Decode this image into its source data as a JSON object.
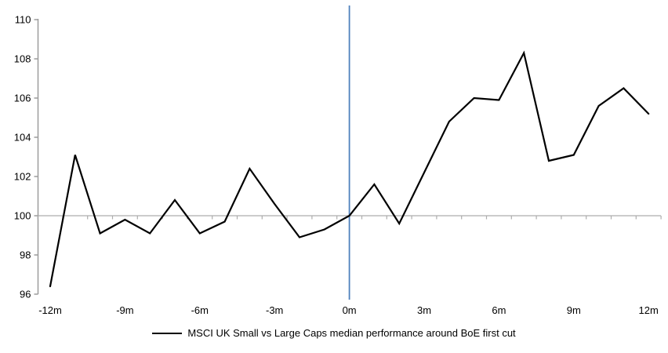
{
  "chart_data": {
    "type": "line",
    "title": "",
    "categories": [
      "-12m",
      "-11m",
      "-10m",
      "-9m",
      "-8m",
      "-7m",
      "-6m",
      "-5m",
      "-4m",
      "-3m",
      "-2m",
      "-1m",
      "0m",
      "1m",
      "2m",
      "3m",
      "4m",
      "5m",
      "6m",
      "7m",
      "8m",
      "9m",
      "10m",
      "11m",
      "12m"
    ],
    "x_numeric": [
      -12,
      -11,
      -10,
      -9,
      -8,
      -7,
      -6,
      -5,
      -4,
      -3,
      -2,
      -1,
      0,
      1,
      2,
      3,
      4,
      5,
      6,
      7,
      8,
      9,
      10,
      11,
      12
    ],
    "series": [
      {
        "name": "MSCI UK Small vs Large Caps median performance around BoE first cut",
        "color": "#000000",
        "values": [
          96.4,
          103.1,
          99.1,
          99.8,
          99.1,
          100.8,
          99.1,
          99.7,
          102.4,
          100.6,
          98.9,
          99.3,
          100.0,
          101.6,
          99.6,
          102.2,
          104.8,
          106.0,
          105.9,
          108.3,
          102.8,
          103.1,
          105.6,
          106.5,
          105.2
        ]
      }
    ],
    "ylim": [
      96,
      110
    ],
    "yticks": [
      110,
      108,
      106,
      104,
      102,
      100,
      98,
      96
    ],
    "xtick_labels": [
      "-12m",
      "-9m",
      "-6m",
      "-3m",
      "0m",
      "3m",
      "6m",
      "9m",
      "12m"
    ],
    "x_axis_cross_value": 100,
    "grid": "off",
    "legend_position": "bottom",
    "event_line": {
      "at_category": "0m",
      "color": "#4f81bd"
    },
    "colors": {
      "series_line": "#000000",
      "event_line": "#4f81bd",
      "axis": "#9c9c9c",
      "category_axis": "#adadad",
      "tick_label": "#000000"
    }
  }
}
